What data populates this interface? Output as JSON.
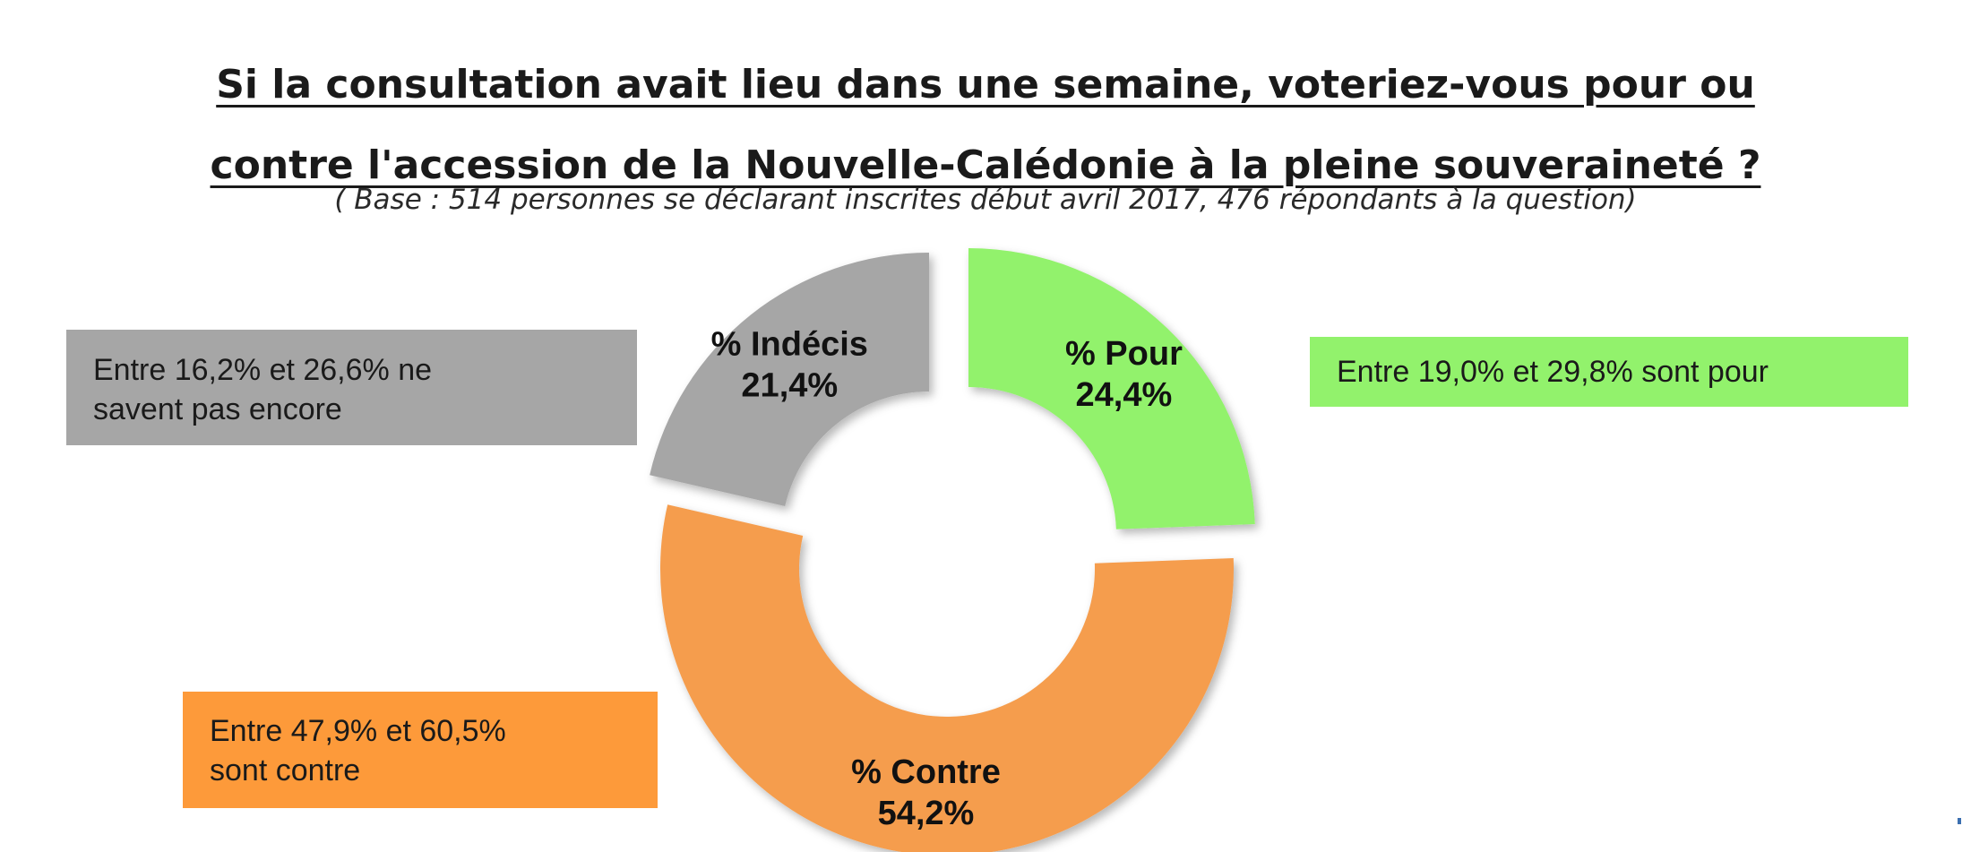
{
  "title": {
    "line1": "Si la consultation avait lieu dans une semaine, voteriez-vous pour ou",
    "line2": "contre l'accession de la Nouvelle-Calédonie à la pleine souveraineté ?"
  },
  "subtitle": "( Base : 514 personnes se déclarant inscrites début avril 2017, 476 répondants à la question)",
  "chart_data": {
    "type": "pie",
    "title": "Si la consultation avait lieu dans une semaine, voteriez-vous pour ou contre l'accession de la Nouvelle-Calédonie à la pleine souveraineté ?",
    "subtitle": "( Base : 514 personnes se déclarant inscrites début avril 2017, 476 répondants à la question)",
    "donut": true,
    "slices": [
      {
        "label": "% Pour",
        "value": 24.4,
        "value_label": "24,4%",
        "color": "#92f26c",
        "interval": "Entre 19,0% et 29,8% sont pour"
      },
      {
        "label": "% Contre",
        "value": 54.2,
        "value_label": "54,2%",
        "color": "#f59d4e",
        "interval": "Entre 47,9% et 60,5% sont contre"
      },
      {
        "label": "% Indécis",
        "value": 21.4,
        "value_label": "21,4%",
        "color": "#a6a6a6",
        "interval": "Entre 16,2% et 26,6% ne savent pas encore"
      }
    ]
  },
  "annotations": {
    "indecis": {
      "line1": "Entre 16,2% et 26,6% ne",
      "line2": "savent pas encore"
    },
    "pour": {
      "line1": "Entre 19,0% et 29,8% sont pour"
    },
    "contre": {
      "line1": "Entre 47,9% et 60,5%",
      "line2": "sont contre"
    }
  }
}
